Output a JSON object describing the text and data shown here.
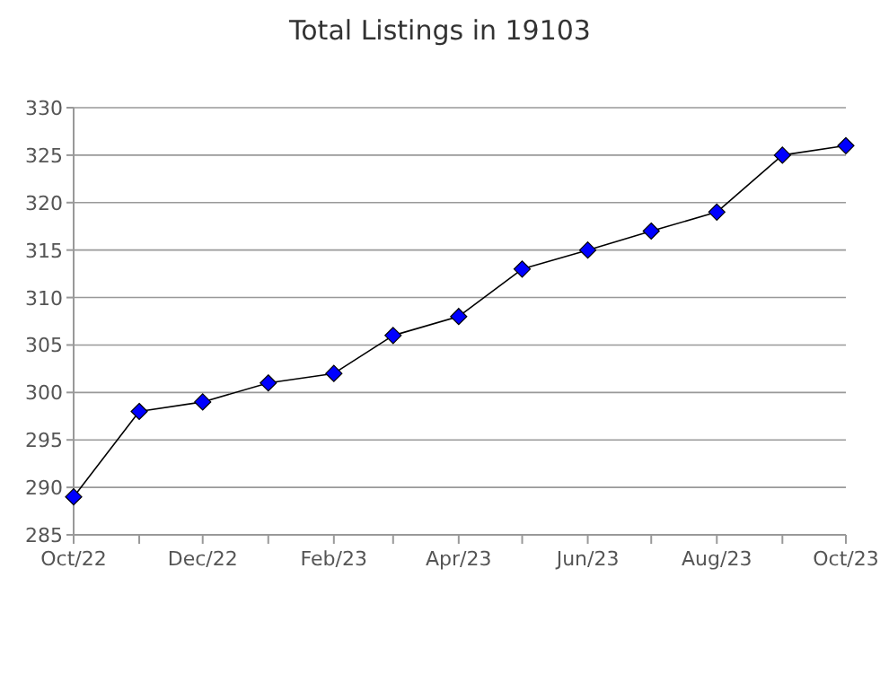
{
  "chart_data": {
    "type": "line",
    "title": "Total Listings in 19103",
    "x": [
      "2022-10",
      "2022-11",
      "2022-12",
      "2023-01",
      "2023-02",
      "2023-03",
      "2023-04",
      "2023-05",
      "2023-06",
      "2023-07",
      "2023-08",
      "2023-09",
      "2023-10"
    ],
    "series": [
      {
        "color": "#0000ff",
        "values": [
          289,
          298,
          299,
          301,
          302,
          306,
          308,
          313,
          315,
          317,
          319,
          325,
          326
        ]
      }
    ],
    "xlim": [
      "2022-10",
      "2023-10"
    ],
    "xticks": [
      {
        "value": "2022-10",
        "label": "Oct/22"
      },
      {
        "value": "2022-11",
        "label": null
      },
      {
        "value": "2022-12",
        "label": "Dec/22"
      },
      {
        "value": "2023-01",
        "label": null
      },
      {
        "value": "2023-02",
        "label": "Feb/23"
      },
      {
        "value": "2023-03",
        "label": null
      },
      {
        "value": "2023-04",
        "label": "Apr/23"
      },
      {
        "value": "2023-05",
        "label": null
      },
      {
        "value": "2023-06",
        "label": "Jun/23"
      },
      {
        "value": "2023-07",
        "label": null
      },
      {
        "value": "2023-08",
        "label": "Aug/23"
      },
      {
        "value": "2023-09",
        "label": null
      },
      {
        "value": "2023-10",
        "label": "Oct/23"
      }
    ],
    "ylim": [
      285,
      330
    ],
    "yticks": [
      285,
      290,
      295,
      300,
      305,
      310,
      315,
      320,
      325,
      330
    ],
    "grid": "y",
    "marker": "diamond",
    "line_style": "solid"
  }
}
